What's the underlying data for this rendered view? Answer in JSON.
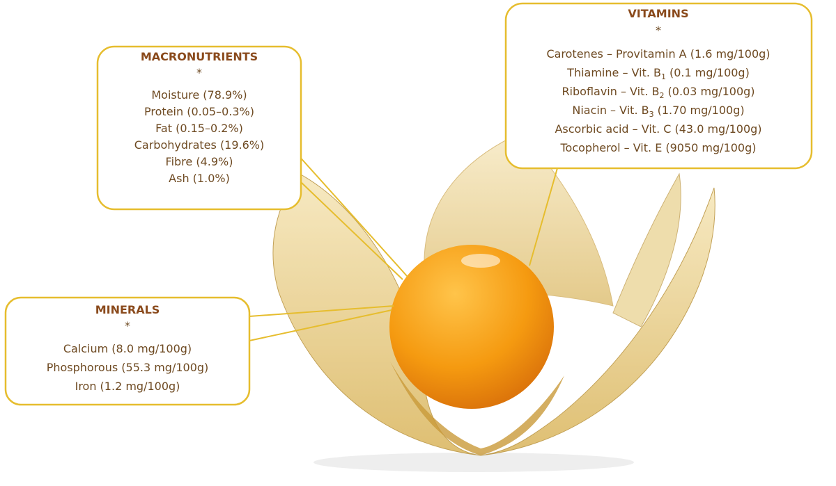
{
  "macronutrients": {
    "title": "MACRONUTRIENTS",
    "marker": "*",
    "items": [
      {
        "label": "Moisture (78.9%)"
      },
      {
        "label": "Protein (0.05–0.3%)"
      },
      {
        "label": "Fat (0.15–0.2%)"
      },
      {
        "label": "Carbohydrates (19.6%)"
      },
      {
        "label": "Fibre (4.9%)"
      },
      {
        "label": "Ash (1.0%)"
      }
    ]
  },
  "vitamins": {
    "title": "VITAMINS",
    "marker": "*",
    "items": [
      {
        "label": "Carotenes – Provitamin A (1.6 mg/100g)"
      },
      {
        "label": "Thiamine – Vit. B",
        "sub": "1",
        "amount": "(0.1 mg/100g)"
      },
      {
        "label": "Riboflavin – Vit. B",
        "sub": "2",
        "amount": "(0.03 mg/100g)"
      },
      {
        "label": "Niacin – Vit. B",
        "sub": "3",
        "amount": "(1.70 mg/100g)"
      },
      {
        "label": "Ascorbic acid – Vit. C (43.0 mg/100g)"
      },
      {
        "label": "Tocopherol – Vit. E (9050 mg/100g)"
      }
    ]
  },
  "minerals": {
    "title": "MINERALS",
    "marker": "*",
    "items": [
      {
        "label": "Calcium (8.0 mg/100g)"
      },
      {
        "label": "Phosphorous (55.3 mg/100g)"
      },
      {
        "label": "Iron (1.2 mg/100g)"
      }
    ]
  }
}
